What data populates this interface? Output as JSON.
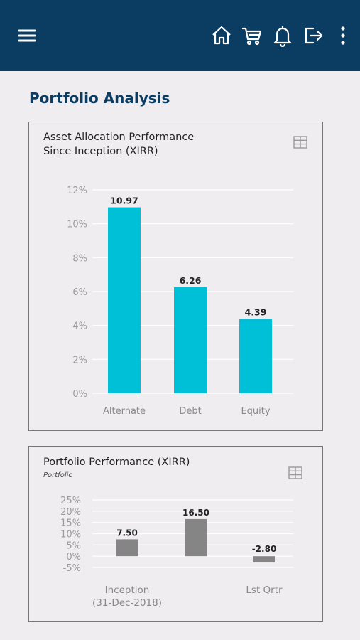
{
  "header": {
    "icons": [
      "menu-icon",
      "home-icon",
      "cart-icon",
      "bell-icon",
      "logout-icon",
      "more-vertical-icon"
    ]
  },
  "page": {
    "title": "Portfolio Analysis"
  },
  "colors": {
    "header_bg": "#0b3d63",
    "bar1": "#00c0d8",
    "bar2": "#858585",
    "title": "#0b3d63"
  },
  "cards": {
    "asset": {
      "title_line1": "Asset Allocation Performance",
      "title_line2": "Since Inception (XIRR)"
    },
    "portfolio": {
      "title": "Portfolio Performance (XIRR)",
      "subtitle": "Portfolio"
    }
  },
  "chart_data": [
    {
      "type": "bar",
      "title": "Asset Allocation Performance Since Inception (XIRR)",
      "categories": [
        "Alternate",
        "Debt",
        "Equity"
      ],
      "values": [
        10.97,
        6.26,
        4.39
      ],
      "value_labels": [
        "10.97",
        "6.26",
        "4.39"
      ],
      "ylim": [
        0,
        12
      ],
      "yticks": [
        "0%",
        "2%",
        "4%",
        "6%",
        "8%",
        "10%",
        "12%"
      ],
      "grid": true
    },
    {
      "type": "bar",
      "title": "Portfolio Performance (XIRR)",
      "subtitle": "Portfolio",
      "categories": [
        "Inception (31-Dec-2018)",
        "",
        "Lst Qrtr"
      ],
      "category_lines": [
        [
          "Inception",
          "(31-Dec-2018)"
        ],
        [],
        [
          "Lst Qrtr"
        ]
      ],
      "values": [
        7.5,
        16.5,
        -2.8
      ],
      "value_labels": [
        "7.50",
        "16.50",
        "-2.80"
      ],
      "ylim": [
        -5,
        25
      ],
      "yticks": [
        "-5%",
        "0%",
        "5%",
        "10%",
        "15%",
        "20%",
        "25%"
      ],
      "grid": true
    }
  ]
}
